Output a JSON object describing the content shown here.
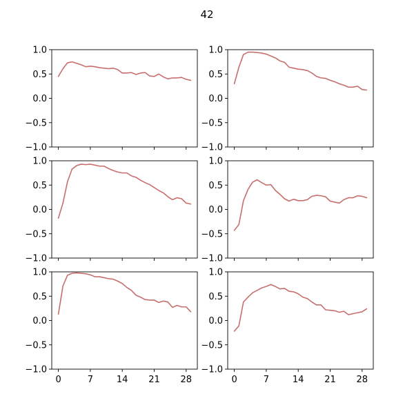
{
  "figure": {
    "suptitle": "42"
  },
  "chart_data": [
    {
      "type": "line",
      "title": "",
      "xlabel": "",
      "ylabel": "",
      "ylim": [
        -1.0,
        1.0
      ],
      "xlim": [
        -1.45,
        30.45
      ],
      "yticks": [
        -1.0,
        -0.5,
        0.0,
        0.5,
        1.0
      ],
      "ytick_labels": [
        "−1.0",
        "−0.5",
        "0.0",
        "0.5",
        "1.0"
      ],
      "xticks": [
        0,
        7,
        14,
        21,
        28
      ],
      "xtick_labels": [],
      "grid": false,
      "series": [
        {
          "color": "#c76e6c",
          "x": [
            0,
            1,
            2,
            3,
            4,
            5,
            6,
            7,
            8,
            9,
            10,
            11,
            12,
            13,
            14,
            15,
            16,
            17,
            18,
            19,
            20,
            21,
            22,
            23,
            24,
            25,
            26,
            27,
            28,
            29
          ],
          "values": [
            0.45,
            0.61,
            0.73,
            0.75,
            0.72,
            0.69,
            0.65,
            0.66,
            0.65,
            0.63,
            0.62,
            0.61,
            0.62,
            0.59,
            0.52,
            0.52,
            0.53,
            0.49,
            0.52,
            0.53,
            0.46,
            0.45,
            0.5,
            0.44,
            0.4,
            0.42,
            0.42,
            0.43,
            0.39,
            0.37
          ]
        }
      ]
    },
    {
      "type": "line",
      "title": "",
      "xlabel": "",
      "ylabel": "",
      "ylim": [
        -1.0,
        1.0
      ],
      "xlim": [
        -1.45,
        30.45
      ],
      "yticks": [
        -1.0,
        -0.5,
        0.0,
        0.5,
        1.0
      ],
      "ytick_labels": [
        "−1.0",
        "−0.5",
        "0.0",
        "0.5",
        "1.0"
      ],
      "xticks": [
        0,
        7,
        14,
        21,
        28
      ],
      "xtick_labels": [],
      "grid": false,
      "series": [
        {
          "color": "#c76e6c",
          "x": [
            0,
            1,
            2,
            3,
            4,
            5,
            6,
            7,
            8,
            9,
            10,
            11,
            12,
            13,
            14,
            15,
            16,
            17,
            18,
            19,
            20,
            21,
            22,
            23,
            24,
            25,
            26,
            27,
            28,
            29
          ],
          "values": [
            0.3,
            0.64,
            0.9,
            0.95,
            0.95,
            0.94,
            0.93,
            0.91,
            0.87,
            0.83,
            0.77,
            0.74,
            0.64,
            0.62,
            0.6,
            0.59,
            0.57,
            0.52,
            0.45,
            0.42,
            0.41,
            0.37,
            0.34,
            0.3,
            0.27,
            0.23,
            0.23,
            0.25,
            0.18,
            0.17
          ]
        }
      ]
    },
    {
      "type": "line",
      "title": "",
      "xlabel": "",
      "ylabel": "",
      "ylim": [
        -1.0,
        1.0
      ],
      "xlim": [
        -1.45,
        30.45
      ],
      "yticks": [
        -1.0,
        -0.5,
        0.0,
        0.5,
        1.0
      ],
      "ytick_labels": [
        "−1.0",
        "−0.5",
        "0.0",
        "0.5",
        "1.0"
      ],
      "xticks": [
        0,
        7,
        14,
        21,
        28
      ],
      "xtick_labels": [],
      "grid": false,
      "series": [
        {
          "color": "#c76e6c",
          "x": [
            0,
            1,
            2,
            3,
            4,
            5,
            6,
            7,
            8,
            9,
            10,
            11,
            12,
            13,
            14,
            15,
            16,
            17,
            18,
            19,
            20,
            21,
            22,
            23,
            24,
            25,
            26,
            27,
            28,
            29
          ],
          "values": [
            -0.18,
            0.13,
            0.57,
            0.83,
            0.9,
            0.93,
            0.92,
            0.93,
            0.91,
            0.89,
            0.89,
            0.84,
            0.8,
            0.77,
            0.75,
            0.75,
            0.69,
            0.66,
            0.6,
            0.55,
            0.51,
            0.45,
            0.39,
            0.34,
            0.26,
            0.2,
            0.24,
            0.22,
            0.13,
            0.11
          ]
        }
      ]
    },
    {
      "type": "line",
      "title": "",
      "xlabel": "",
      "ylabel": "",
      "ylim": [
        -1.0,
        1.0
      ],
      "xlim": [
        -1.45,
        30.45
      ],
      "yticks": [
        -1.0,
        -0.5,
        0.0,
        0.5,
        1.0
      ],
      "ytick_labels": [
        "−1.0",
        "−0.5",
        "0.0",
        "0.5",
        "1.0"
      ],
      "xticks": [
        0,
        7,
        14,
        21,
        28
      ],
      "xtick_labels": [],
      "grid": false,
      "series": [
        {
          "color": "#c76e6c",
          "x": [
            0,
            1,
            2,
            3,
            4,
            5,
            6,
            7,
            8,
            9,
            10,
            11,
            12,
            13,
            14,
            15,
            16,
            17,
            18,
            19,
            20,
            21,
            22,
            23,
            24,
            25,
            26,
            27,
            28,
            29
          ],
          "values": [
            -0.43,
            -0.31,
            0.18,
            0.41,
            0.56,
            0.61,
            0.55,
            0.5,
            0.51,
            0.39,
            0.31,
            0.22,
            0.17,
            0.21,
            0.18,
            0.18,
            0.2,
            0.27,
            0.29,
            0.28,
            0.26,
            0.17,
            0.15,
            0.13,
            0.2,
            0.24,
            0.24,
            0.28,
            0.27,
            0.24
          ]
        }
      ]
    },
    {
      "type": "line",
      "title": "",
      "xlabel": "",
      "ylabel": "",
      "ylim": [
        -1.0,
        1.0
      ],
      "xlim": [
        -1.45,
        30.45
      ],
      "yticks": [
        -1.0,
        -0.5,
        0.0,
        0.5,
        1.0
      ],
      "ytick_labels": [
        "−1.0",
        "−0.5",
        "0.0",
        "0.5",
        "1.0"
      ],
      "xticks": [
        0,
        7,
        14,
        21,
        28
      ],
      "xtick_labels": [
        "0",
        "7",
        "14",
        "21",
        "28"
      ],
      "grid": false,
      "series": [
        {
          "color": "#c76e6c",
          "x": [
            0,
            1,
            2,
            3,
            4,
            5,
            6,
            7,
            8,
            9,
            10,
            11,
            12,
            13,
            14,
            15,
            16,
            17,
            18,
            19,
            20,
            21,
            22,
            23,
            24,
            25,
            26,
            27,
            28,
            29
          ],
          "values": [
            0.13,
            0.71,
            0.93,
            0.97,
            0.98,
            0.97,
            0.96,
            0.94,
            0.9,
            0.9,
            0.88,
            0.86,
            0.85,
            0.81,
            0.76,
            0.68,
            0.62,
            0.52,
            0.48,
            0.43,
            0.42,
            0.42,
            0.37,
            0.4,
            0.38,
            0.27,
            0.31,
            0.28,
            0.28,
            0.18
          ]
        }
      ]
    },
    {
      "type": "line",
      "title": "",
      "xlabel": "",
      "ylabel": "",
      "ylim": [
        -1.0,
        1.0
      ],
      "xlim": [
        -1.45,
        30.45
      ],
      "yticks": [
        -1.0,
        -0.5,
        0.0,
        0.5,
        1.0
      ],
      "ytick_labels": [
        "−1.0",
        "−0.5",
        "0.0",
        "0.5",
        "1.0"
      ],
      "xticks": [
        0,
        7,
        14,
        21,
        28
      ],
      "xtick_labels": [
        "0",
        "7",
        "14",
        "21",
        "28"
      ],
      "grid": false,
      "series": [
        {
          "color": "#c76e6c",
          "x": [
            0,
            1,
            2,
            3,
            4,
            5,
            6,
            7,
            8,
            9,
            10,
            11,
            12,
            13,
            14,
            15,
            16,
            17,
            18,
            19,
            20,
            21,
            22,
            23,
            24,
            25,
            26,
            27,
            28,
            29
          ],
          "values": [
            -0.22,
            -0.11,
            0.38,
            0.48,
            0.57,
            0.62,
            0.67,
            0.7,
            0.74,
            0.7,
            0.65,
            0.66,
            0.6,
            0.59,
            0.55,
            0.48,
            0.45,
            0.38,
            0.32,
            0.32,
            0.22,
            0.21,
            0.2,
            0.17,
            0.19,
            0.12,
            0.14,
            0.16,
            0.18,
            0.24
          ]
        }
      ]
    }
  ]
}
